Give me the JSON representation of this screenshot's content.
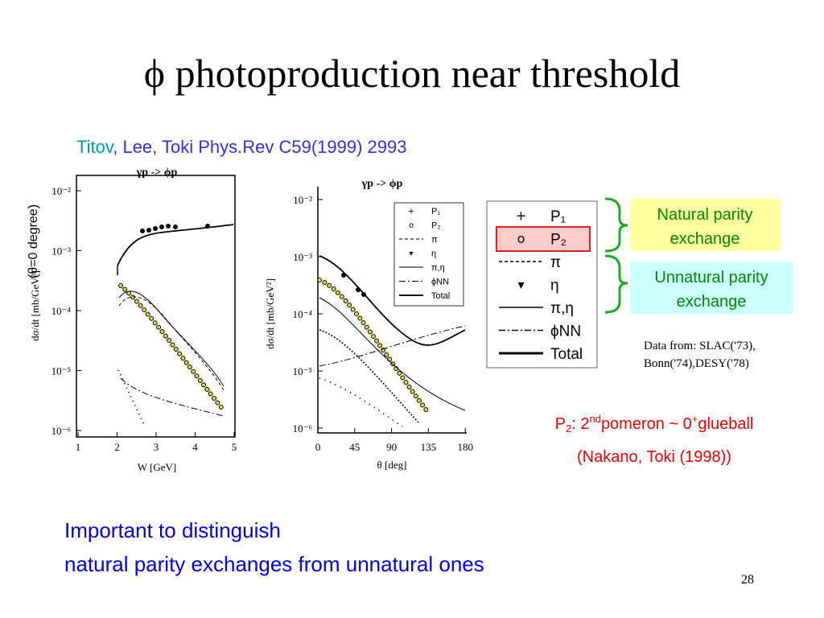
{
  "title": "ϕ photoproduction near threshold",
  "citation": {
    "first_author": "Titov",
    "rest": ", Lee, Toki Phys.Rev C59(1999) 2993"
  },
  "side_label": "(θ=0 degree)",
  "left_plot": {
    "title": "γp -> ϕp",
    "y_label": "dσ/dt [mb/GeV²]",
    "x_label": "W [GeV]",
    "xticks": [
      "1",
      "2",
      "3",
      "4",
      "5"
    ],
    "yticks": [
      "10⁻²",
      "10⁻³",
      "10⁻⁴",
      "10⁻⁵",
      "10⁻⁶"
    ]
  },
  "right_plot": {
    "title": "γp -> ϕp",
    "y_label": "dσ/dt [mb/GeV²]",
    "x_label": "θ [deg]",
    "xticks": [
      "0",
      "45",
      "90",
      "135",
      "180"
    ],
    "yticks": [
      "10⁻²",
      "10⁻³",
      "10⁻⁴",
      "10⁻⁵",
      "10⁻⁶"
    ],
    "legend": [
      "P₁",
      "P₂",
      "π",
      "η",
      "π,η",
      "ϕNN",
      "Total"
    ]
  },
  "legend_zoom": [
    "P₁",
    "P₂",
    "π",
    "η",
    "π,η",
    "ϕNN",
    "Total"
  ],
  "natural": [
    "Natural parity",
    "exchange"
  ],
  "unnatural": [
    "Unnatural parity",
    "exchange"
  ],
  "data_source": [
    "Data from: SLAC('73),",
    "Bonn('74),DESY('78)"
  ],
  "p2_note": [
    "P",
    "2",
    ": 2",
    "nd",
    "pomeron ~ 0",
    "+",
    "glueball"
  ],
  "p2_ref": "(Nakano, Toki (1998))",
  "conclusion": [
    "Important to distinguish",
    "natural parity exchanges from unnatural ones"
  ],
  "page_number": "28"
}
